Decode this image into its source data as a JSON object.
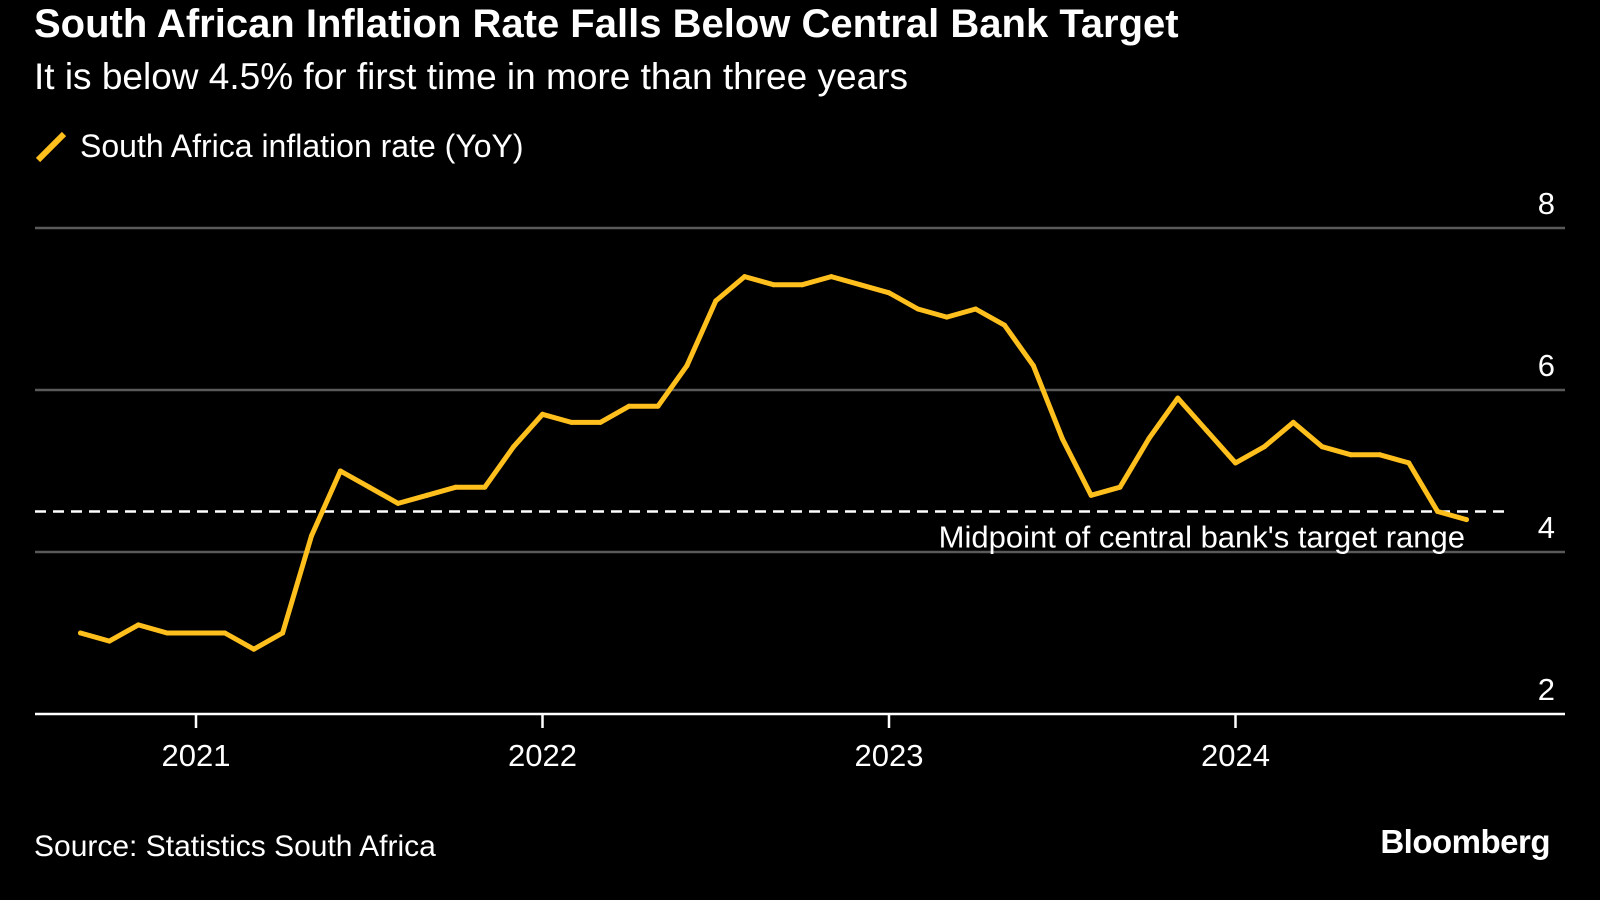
{
  "header": {
    "title": "South African Inflation Rate Falls Below Central Bank Target",
    "subtitle": "It is below 4.5% for first time in more than three years"
  },
  "footer": {
    "source": "Source: Statistics South Africa",
    "brand": "Bloomberg"
  },
  "colors": {
    "background": "#000000",
    "series": "#ffbf1c",
    "gridline": "#5a5a5a",
    "text": "#ffffff"
  },
  "chart_data": {
    "type": "line",
    "legend": "top-left",
    "grid": true,
    "y_axis_side": "right",
    "ylim": [
      2,
      8
    ],
    "yticks": [
      2,
      4,
      6,
      8
    ],
    "xticks": [
      "2021",
      "2022",
      "2023",
      "2024"
    ],
    "x_start": "2020-09",
    "x_end": "2024-09",
    "series": [
      {
        "name": "South Africa inflation rate (YoY)",
        "x": [
          "2020-09",
          "2020-10",
          "2020-11",
          "2020-12",
          "2021-01",
          "2021-02",
          "2021-03",
          "2021-04",
          "2021-05",
          "2021-06",
          "2021-07",
          "2021-08",
          "2021-09",
          "2021-10",
          "2021-11",
          "2021-12",
          "2022-01",
          "2022-02",
          "2022-03",
          "2022-04",
          "2022-05",
          "2022-06",
          "2022-07",
          "2022-08",
          "2022-09",
          "2022-10",
          "2022-11",
          "2022-12",
          "2023-01",
          "2023-02",
          "2023-03",
          "2023-04",
          "2023-05",
          "2023-06",
          "2023-07",
          "2023-08",
          "2023-09",
          "2023-10",
          "2023-11",
          "2023-12",
          "2024-01",
          "2024-02",
          "2024-03",
          "2024-04",
          "2024-05",
          "2024-06",
          "2024-07",
          "2024-08",
          "2024-09"
        ],
        "values": [
          3.0,
          2.9,
          3.1,
          3.0,
          3.0,
          3.0,
          2.8,
          3.0,
          4.2,
          5.0,
          4.8,
          4.6,
          4.7,
          4.8,
          4.8,
          5.3,
          5.7,
          5.6,
          5.6,
          5.8,
          5.8,
          6.3,
          7.1,
          7.4,
          7.3,
          7.3,
          7.4,
          7.3,
          7.2,
          7.0,
          6.9,
          7.0,
          6.8,
          6.3,
          5.4,
          4.7,
          4.8,
          5.4,
          5.9,
          5.5,
          5.1,
          5.3,
          5.6,
          5.3,
          5.2,
          5.2,
          5.1,
          4.5,
          4.4
        ]
      }
    ],
    "annotations": [
      {
        "type": "hline",
        "y": 4.5,
        "label": "Midpoint of central bank's target range"
      }
    ]
  }
}
